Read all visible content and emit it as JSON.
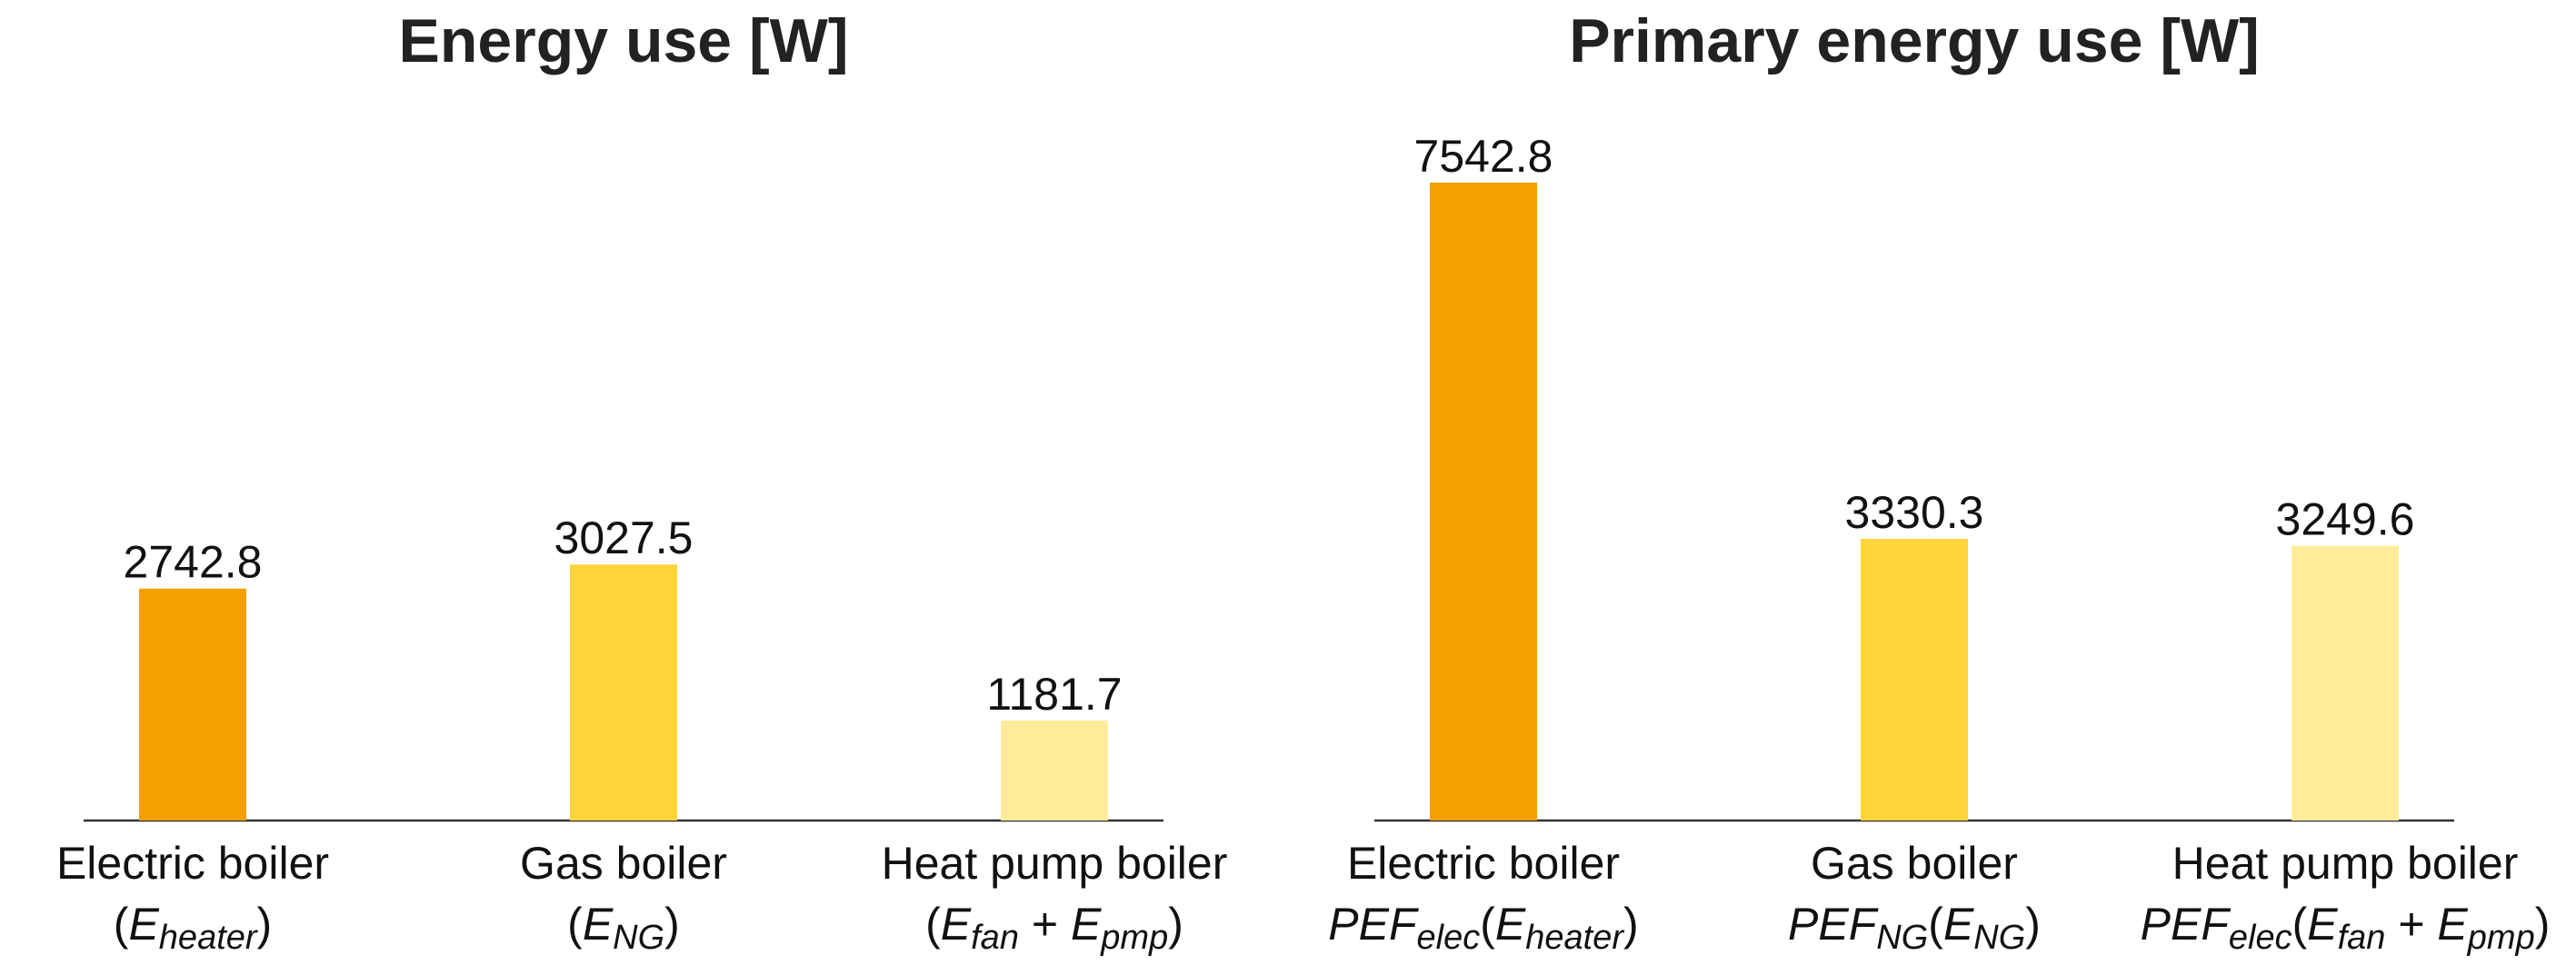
{
  "chart_data": [
    {
      "type": "bar",
      "title": "Energy use [W]",
      "xlabel": "",
      "ylabel": "",
      "ylim": [
        0,
        7542.8
      ],
      "grid": false,
      "categories": [
        "Electric boiler",
        "Gas boiler",
        "Heat pump boiler"
      ],
      "category_formulas": [
        [
          {
            "t": "(",
            "i": false
          },
          {
            "t": "E",
            "i": true
          },
          {
            "t": "heater",
            "i": true,
            "sub": true
          },
          {
            "t": ")",
            "i": false
          }
        ],
        [
          {
            "t": "(",
            "i": false
          },
          {
            "t": "E",
            "i": true
          },
          {
            "t": "NG",
            "i": true,
            "sub": true
          },
          {
            "t": ")",
            "i": false
          }
        ],
        [
          {
            "t": "(",
            "i": false
          },
          {
            "t": "E",
            "i": true
          },
          {
            "t": "fan",
            "i": true,
            "sub": true
          },
          {
            "t": " + ",
            "i": false
          },
          {
            "t": "E",
            "i": true
          },
          {
            "t": "pmp",
            "i": true,
            "sub": true
          },
          {
            "t": ")",
            "i": false
          }
        ]
      ],
      "values": [
        2742.8,
        3027.5,
        1181.7
      ],
      "value_labels": [
        "2742.8",
        "3027.5",
        "1181.7"
      ],
      "colors": [
        "#f5a000",
        "#ffd43b",
        "#ffeb99"
      ]
    },
    {
      "type": "bar",
      "title": "Primary energy use [W]",
      "xlabel": "",
      "ylabel": "",
      "ylim": [
        0,
        7542.8
      ],
      "grid": false,
      "categories": [
        "Electric boiler",
        "Gas boiler",
        "Heat pump boiler"
      ],
      "category_formulas": [
        [
          {
            "t": "PEF",
            "i": true
          },
          {
            "t": "elec",
            "i": true,
            "sub": true
          },
          {
            "t": "(",
            "i": false
          },
          {
            "t": "E",
            "i": true
          },
          {
            "t": "heater",
            "i": true,
            "sub": true
          },
          {
            "t": ")",
            "i": false
          }
        ],
        [
          {
            "t": "PEF",
            "i": true
          },
          {
            "t": "NG",
            "i": true,
            "sub": true
          },
          {
            "t": "(",
            "i": false
          },
          {
            "t": "E",
            "i": true
          },
          {
            "t": "NG",
            "i": true,
            "sub": true
          },
          {
            "t": ")",
            "i": false
          }
        ],
        [
          {
            "t": "PEF",
            "i": true
          },
          {
            "t": "elec",
            "i": true,
            "sub": true
          },
          {
            "t": "(",
            "i": false
          },
          {
            "t": "E",
            "i": true
          },
          {
            "t": "fan",
            "i": true,
            "sub": true
          },
          {
            "t": " + ",
            "i": false
          },
          {
            "t": "E",
            "i": true
          },
          {
            "t": "pmp",
            "i": true,
            "sub": true
          },
          {
            "t": ")",
            "i": false
          }
        ]
      ],
      "values": [
        7542.8,
        3330.3,
        3249.6
      ],
      "value_labels": [
        "7542.8",
        "3330.3",
        "3249.6"
      ],
      "colors": [
        "#f5a000",
        "#ffd43b",
        "#ffeb99"
      ]
    }
  ]
}
